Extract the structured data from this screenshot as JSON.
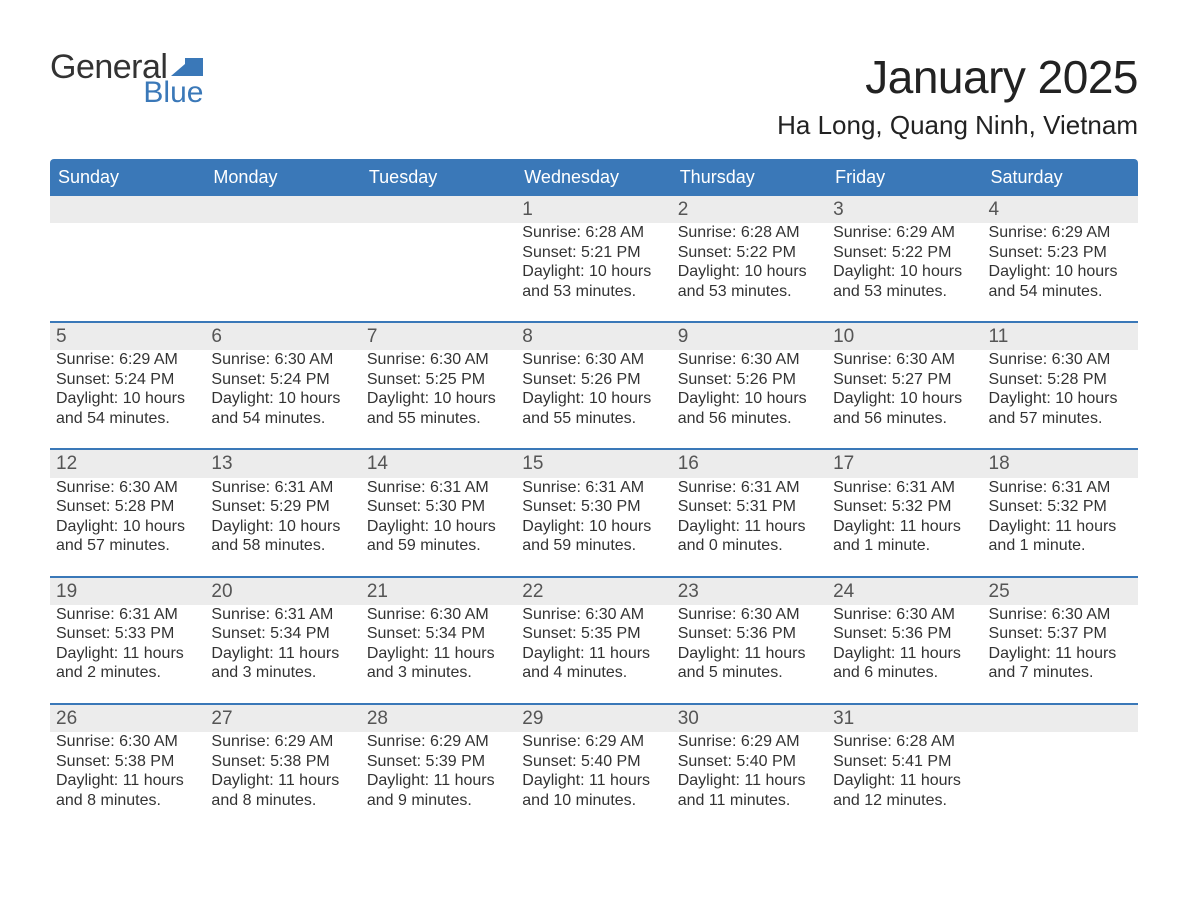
{
  "logo": {
    "text1": "General",
    "text2": "Blue",
    "icon_color": "#3a78b8"
  },
  "title": "January 2025",
  "location": "Ha Long, Quang Ninh, Vietnam",
  "colors": {
    "header_bg": "#3a78b8",
    "header_text": "#ffffff",
    "daynum_bg": "#ececec",
    "row_border": "#3a78b8",
    "body_text": "#333333",
    "daynum_text": "#555555",
    "background": "#ffffff"
  },
  "fonts": {
    "title_size_pt": 34,
    "location_size_pt": 20,
    "header_size_pt": 14,
    "body_size_pt": 12,
    "daynum_size_pt": 14
  },
  "layout": {
    "columns": 7,
    "rows": 5
  },
  "weekdays": [
    "Sunday",
    "Monday",
    "Tuesday",
    "Wednesday",
    "Thursday",
    "Friday",
    "Saturday"
  ],
  "weeks": [
    [
      null,
      null,
      null,
      {
        "d": "1",
        "sr": "6:28 AM",
        "ss": "5:21 PM",
        "dl": "10 hours and 53 minutes."
      },
      {
        "d": "2",
        "sr": "6:28 AM",
        "ss": "5:22 PM",
        "dl": "10 hours and 53 minutes."
      },
      {
        "d": "3",
        "sr": "6:29 AM",
        "ss": "5:22 PM",
        "dl": "10 hours and 53 minutes."
      },
      {
        "d": "4",
        "sr": "6:29 AM",
        "ss": "5:23 PM",
        "dl": "10 hours and 54 minutes."
      }
    ],
    [
      {
        "d": "5",
        "sr": "6:29 AM",
        "ss": "5:24 PM",
        "dl": "10 hours and 54 minutes."
      },
      {
        "d": "6",
        "sr": "6:30 AM",
        "ss": "5:24 PM",
        "dl": "10 hours and 54 minutes."
      },
      {
        "d": "7",
        "sr": "6:30 AM",
        "ss": "5:25 PM",
        "dl": "10 hours and 55 minutes."
      },
      {
        "d": "8",
        "sr": "6:30 AM",
        "ss": "5:26 PM",
        "dl": "10 hours and 55 minutes."
      },
      {
        "d": "9",
        "sr": "6:30 AM",
        "ss": "5:26 PM",
        "dl": "10 hours and 56 minutes."
      },
      {
        "d": "10",
        "sr": "6:30 AM",
        "ss": "5:27 PM",
        "dl": "10 hours and 56 minutes."
      },
      {
        "d": "11",
        "sr": "6:30 AM",
        "ss": "5:28 PM",
        "dl": "10 hours and 57 minutes."
      }
    ],
    [
      {
        "d": "12",
        "sr": "6:30 AM",
        "ss": "5:28 PM",
        "dl": "10 hours and 57 minutes."
      },
      {
        "d": "13",
        "sr": "6:31 AM",
        "ss": "5:29 PM",
        "dl": "10 hours and 58 minutes."
      },
      {
        "d": "14",
        "sr": "6:31 AM",
        "ss": "5:30 PM",
        "dl": "10 hours and 59 minutes."
      },
      {
        "d": "15",
        "sr": "6:31 AM",
        "ss": "5:30 PM",
        "dl": "10 hours and 59 minutes."
      },
      {
        "d": "16",
        "sr": "6:31 AM",
        "ss": "5:31 PM",
        "dl": "11 hours and 0 minutes."
      },
      {
        "d": "17",
        "sr": "6:31 AM",
        "ss": "5:32 PM",
        "dl": "11 hours and 1 minute."
      },
      {
        "d": "18",
        "sr": "6:31 AM",
        "ss": "5:32 PM",
        "dl": "11 hours and 1 minute."
      }
    ],
    [
      {
        "d": "19",
        "sr": "6:31 AM",
        "ss": "5:33 PM",
        "dl": "11 hours and 2 minutes."
      },
      {
        "d": "20",
        "sr": "6:31 AM",
        "ss": "5:34 PM",
        "dl": "11 hours and 3 minutes."
      },
      {
        "d": "21",
        "sr": "6:30 AM",
        "ss": "5:34 PM",
        "dl": "11 hours and 3 minutes."
      },
      {
        "d": "22",
        "sr": "6:30 AM",
        "ss": "5:35 PM",
        "dl": "11 hours and 4 minutes."
      },
      {
        "d": "23",
        "sr": "6:30 AM",
        "ss": "5:36 PM",
        "dl": "11 hours and 5 minutes."
      },
      {
        "d": "24",
        "sr": "6:30 AM",
        "ss": "5:36 PM",
        "dl": "11 hours and 6 minutes."
      },
      {
        "d": "25",
        "sr": "6:30 AM",
        "ss": "5:37 PM",
        "dl": "11 hours and 7 minutes."
      }
    ],
    [
      {
        "d": "26",
        "sr": "6:30 AM",
        "ss": "5:38 PM",
        "dl": "11 hours and 8 minutes."
      },
      {
        "d": "27",
        "sr": "6:29 AM",
        "ss": "5:38 PM",
        "dl": "11 hours and 8 minutes."
      },
      {
        "d": "28",
        "sr": "6:29 AM",
        "ss": "5:39 PM",
        "dl": "11 hours and 9 minutes."
      },
      {
        "d": "29",
        "sr": "6:29 AM",
        "ss": "5:40 PM",
        "dl": "11 hours and 10 minutes."
      },
      {
        "d": "30",
        "sr": "6:29 AM",
        "ss": "5:40 PM",
        "dl": "11 hours and 11 minutes."
      },
      {
        "d": "31",
        "sr": "6:28 AM",
        "ss": "5:41 PM",
        "dl": "11 hours and 12 minutes."
      },
      null
    ]
  ],
  "labels": {
    "sunrise": "Sunrise: ",
    "sunset": "Sunset: ",
    "daylight": "Daylight: "
  }
}
